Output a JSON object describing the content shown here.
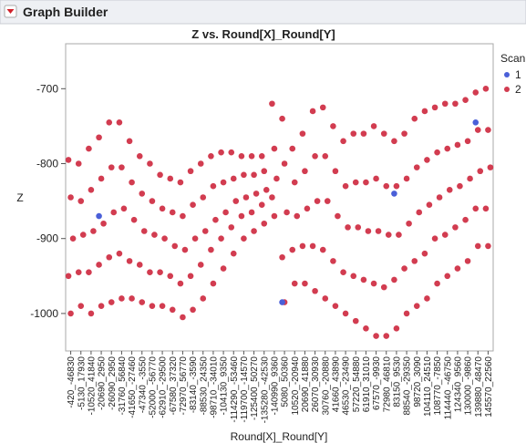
{
  "header": {
    "title": "Graph Builder"
  },
  "chart_data": {
    "type": "scatter",
    "title": "Z vs. Round[X]_Round[Y]",
    "x_label": "Round[X]_Round[Y]",
    "y_label": "Z",
    "categories": [
      "-420_-46830",
      "-5130_17930",
      "-10520_41840",
      "-20690_2950",
      "-26090_2950",
      "-31760_56840",
      "-41650_-27460",
      "-47340_-3550",
      "-52000_-56770",
      "-62910_-29500",
      "-67580_37320",
      "-72970_56770",
      "-83140_-3590",
      "-88530_24350",
      "-98710_-34010",
      "-104130_9350",
      "-114290_-53460",
      "-119700_-14570",
      "-125400_50270",
      "-135280_-42530",
      "-140990_9360",
      "5080_50360",
      "10520_-20940",
      "20690_41880",
      "26070_30930",
      "30760_-20880",
      "41660_43890",
      "46530_-23490",
      "57220_54880",
      "61910_31010",
      "67570_-9930",
      "72980_46810",
      "83150_9530",
      "88540_-29350",
      "98720_3090",
      "104110_24510",
      "108770_-7850",
      "114440_-46750",
      "124340_9560",
      "130000_-9860",
      "139880_48470",
      "145570_22560"
    ],
    "legend_title": "Scan",
    "series": [
      {
        "name": "1",
        "color": "#4a5fd8",
        "values": [
          [],
          [],
          [],
          [
            -870
          ],
          [],
          [],
          [],
          [],
          [],
          [],
          [],
          [],
          [],
          [],
          [],
          [],
          [],
          [],
          [],
          [],
          [],
          [
            -985
          ],
          [],
          [],
          [],
          [],
          [],
          [],
          [],
          [],
          [],
          [],
          [
            -840
          ],
          [],
          [],
          [],
          [],
          [],
          [],
          [],
          [
            -745
          ],
          []
        ]
      },
      {
        "name": "2",
        "color": "#d23c50",
        "values": [
          [
            -795,
            -845,
            -900,
            -950,
            -1000
          ],
          [
            -800,
            -850,
            -895,
            -945,
            -990
          ],
          [
            -780,
            -835,
            -890,
            -945,
            -1000
          ],
          [
            -765,
            -820,
            -880,
            -935,
            -990
          ],
          [
            -745,
            -805,
            -865,
            -925,
            -985
          ],
          [
            -745,
            -805,
            -860,
            -920,
            -980
          ],
          [
            -770,
            -825,
            -875,
            -930,
            -980
          ],
          [
            -790,
            -840,
            -890,
            -935,
            -985
          ],
          [
            -800,
            -850,
            -895,
            -945,
            -990
          ],
          [
            -815,
            -860,
            -900,
            -945,
            -990
          ],
          [
            -820,
            -865,
            -910,
            -950,
            -995
          ],
          [
            -825,
            -870,
            -915,
            -960,
            -1005
          ],
          [
            -810,
            -855,
            -900,
            -950,
            -995
          ],
          [
            -800,
            -845,
            -890,
            -935,
            -980
          ],
          [
            -790,
            -830,
            -875,
            -915,
            -960
          ],
          [
            -785,
            -825,
            -865,
            -900,
            -940
          ],
          [
            -785,
            -820,
            -850,
            -885,
            -920
          ],
          [
            -790,
            -815,
            -845,
            -870,
            -900
          ],
          [
            -790,
            -815,
            -840,
            -865,
            -890
          ],
          [
            -790,
            -810,
            -835,
            -855,
            -880
          ],
          [
            -720,
            -780,
            -820,
            -845,
            -870
          ],
          [
            -740,
            -800,
            -865,
            -925,
            -985
          ],
          [
            -780,
            -825,
            -870,
            -915,
            -960
          ],
          [
            -760,
            -810,
            -860,
            -910,
            -960
          ],
          [
            -730,
            -790,
            -850,
            -910,
            -970
          ],
          [
            -725,
            -790,
            -850,
            -915,
            -980
          ],
          [
            -750,
            -810,
            -870,
            -930,
            -990
          ],
          [
            -770,
            -830,
            -885,
            -945,
            -1000
          ],
          [
            -760,
            -825,
            -885,
            -950,
            -1010
          ],
          [
            -760,
            -825,
            -890,
            -955,
            -1020
          ],
          [
            -750,
            -820,
            -890,
            -960,
            -1030
          ],
          [
            -760,
            -830,
            -895,
            -965,
            -1030
          ],
          [
            -770,
            -830,
            -895,
            -955,
            -1020
          ],
          [
            -760,
            -820,
            -880,
            -940,
            -1000
          ],
          [
            -740,
            -805,
            -865,
            -930,
            -990
          ],
          [
            -730,
            -795,
            -855,
            -920,
            -980
          ],
          [
            -725,
            -785,
            -845,
            -900,
            -960
          ],
          [
            -720,
            -780,
            -835,
            -895,
            -950
          ],
          [
            -720,
            -775,
            -830,
            -885,
            -940
          ],
          [
            -715,
            -770,
            -820,
            -875,
            -930
          ],
          [
            -705,
            -755,
            -810,
            -860,
            -910
          ],
          [
            -700,
            -755,
            -805,
            -860,
            -910
          ]
        ]
      }
    ],
    "ylim": [
      -1050,
      -640
    ],
    "yticks": [
      -1000,
      -900,
      -800,
      -700
    ],
    "grid": false
  }
}
